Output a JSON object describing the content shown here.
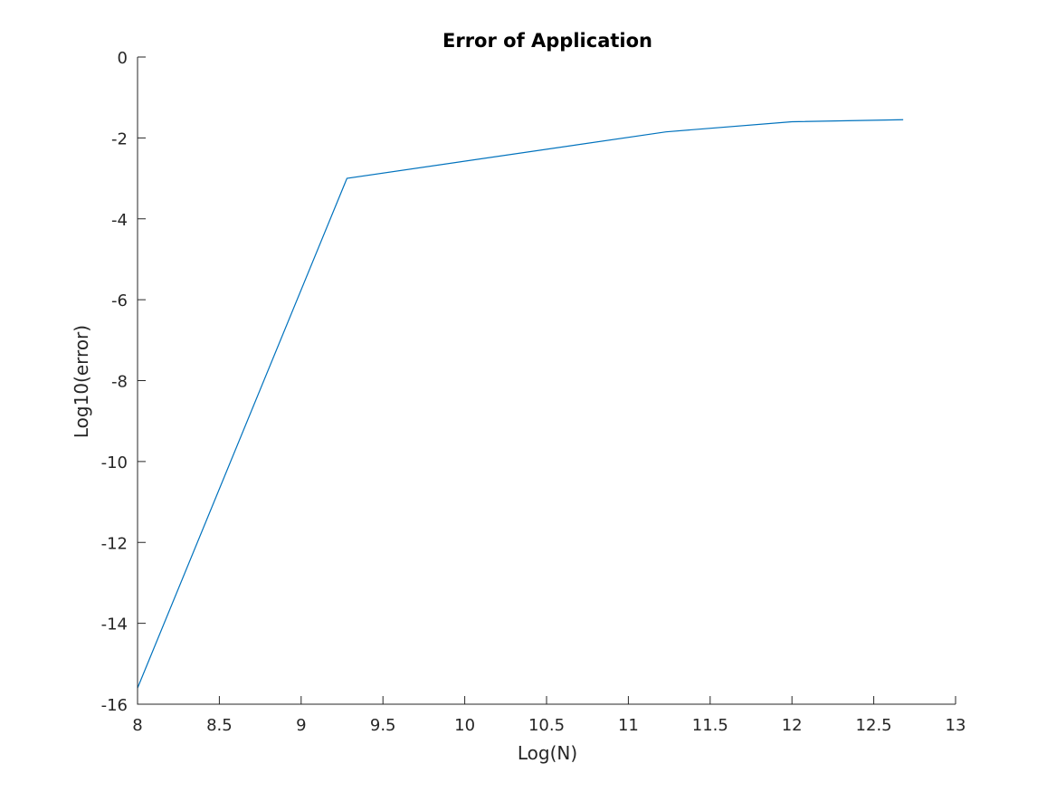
{
  "chart_data": {
    "type": "line",
    "title": "Error of Application",
    "xlabel": "Log(N)",
    "ylabel": "Log10(error)",
    "xlim": [
      8,
      13
    ],
    "ylim": [
      -16,
      0
    ],
    "xticks": [
      8,
      8.5,
      9,
      9.5,
      10,
      10.5,
      11,
      11.5,
      12,
      12.5,
      13
    ],
    "xtick_labels": [
      "8",
      "8.5",
      "9",
      "9.5",
      "10",
      "10.5",
      "11",
      "11.5",
      "12",
      "12.5",
      "13"
    ],
    "yticks": [
      0,
      -2,
      -4,
      -6,
      -8,
      -10,
      -12,
      -14,
      -16
    ],
    "ytick_labels": [
      "0",
      "-2",
      "-4",
      "-6",
      "-8",
      "-10",
      "-12",
      "-14",
      "-16"
    ],
    "grid": false,
    "series": [
      {
        "color": "#0072BD",
        "x": [
          8.0,
          9.28,
          11.23,
          12.0,
          12.68
        ],
        "y": [
          -15.6,
          -3.0,
          -1.85,
          -1.6,
          -1.55
        ]
      }
    ]
  }
}
